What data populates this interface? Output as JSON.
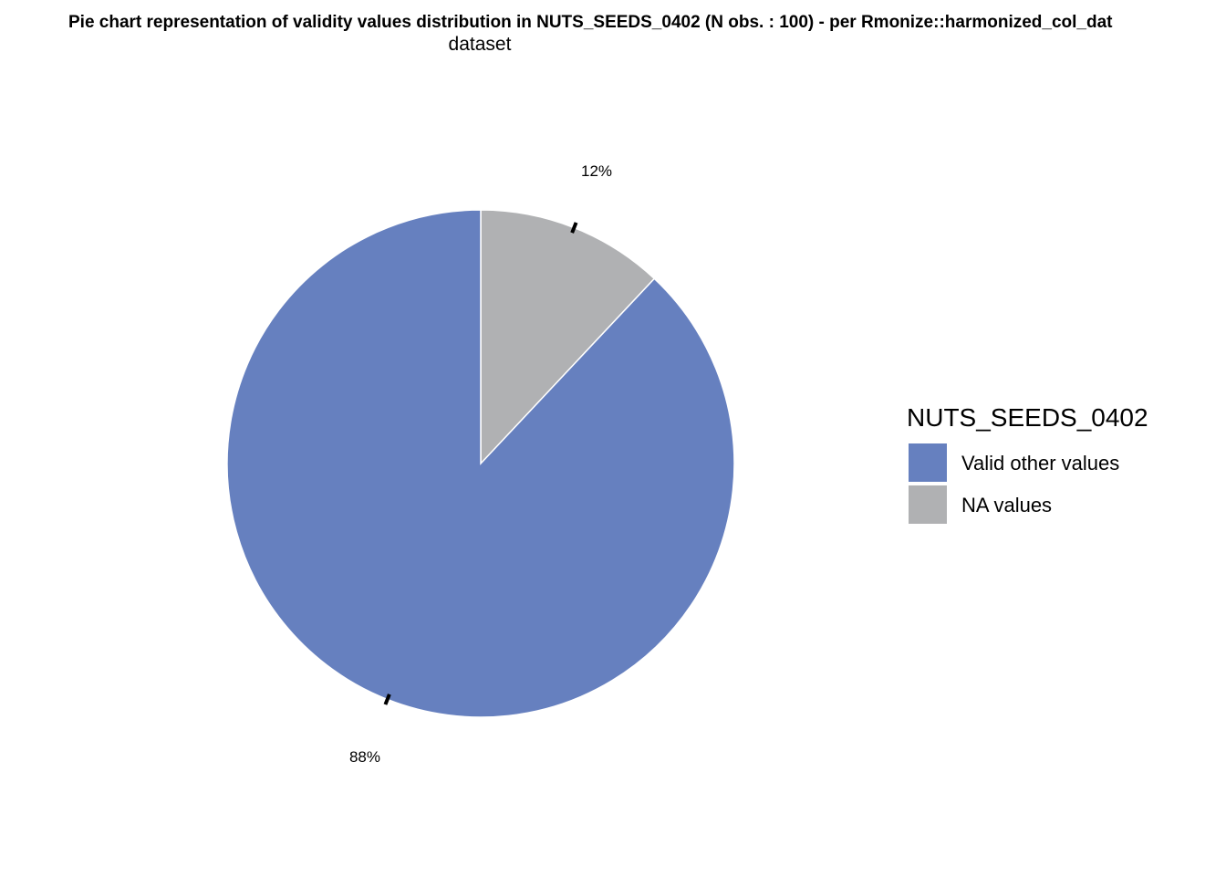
{
  "chart_data": {
    "type": "pie",
    "title_line1": "Pie chart representation of validity values distribution in NUTS_SEEDS_0402 (N obs. : 100) - per Rmonize::harmonized_col_dat",
    "title_line2": "dataset",
    "start": "12 o'clock",
    "direction": "clockwise",
    "slices": [
      {
        "label": "NA values",
        "value": 12,
        "percent_label": "12%",
        "color": "#b0b1b3"
      },
      {
        "label": "Valid other values",
        "value": 88,
        "percent_label": "88%",
        "color": "#6680bf"
      }
    ],
    "legend": {
      "title": "NUTS_SEEDS_0402",
      "position": "right",
      "entries": [
        {
          "label": "Valid other values",
          "color": "#6680bf"
        },
        {
          "label": "NA values",
          "color": "#b0b1b3"
        }
      ]
    }
  }
}
